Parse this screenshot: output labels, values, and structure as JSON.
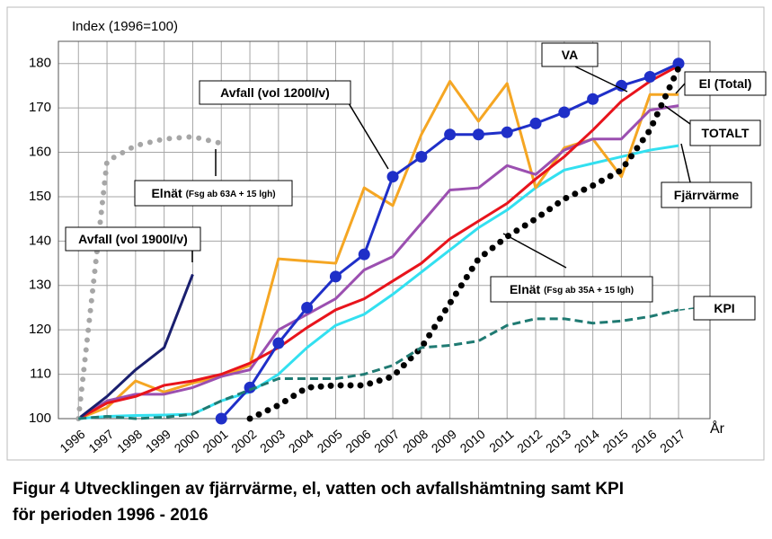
{
  "chart_data": {
    "type": "line",
    "y_label": "Index (1996=100)",
    "x_label": "År",
    "caption": [
      "Figur 4 Utvecklingen av fjärrvärme, el, vatten och avfallshämtning samt KPI",
      "för perioden 1996 - 2016"
    ],
    "x": [
      1996,
      1997,
      1998,
      1999,
      2000,
      2001,
      2002,
      2003,
      2004,
      2005,
      2006,
      2007,
      2008,
      2009,
      2010,
      2011,
      2012,
      2013,
      2014,
      2015,
      2016,
      2017
    ],
    "xlim": [
      1995.3,
      2018.1
    ],
    "xticks": [
      1996,
      1997,
      1998,
      1999,
      2000,
      2001,
      2002,
      2003,
      2004,
      2005,
      2006,
      2007,
      2008,
      2009,
      2010,
      2011,
      2012,
      2013,
      2014,
      2015,
      2016,
      2017
    ],
    "ylim": [
      100,
      185
    ],
    "yticks": [
      100,
      110,
      120,
      130,
      140,
      150,
      160,
      170,
      180
    ],
    "grid": true,
    "series": [
      {
        "name": "Fjärrvärme",
        "color": "#33e0f0",
        "style": "solid",
        "values": [
          100,
          100.5,
          100.7,
          100.8,
          101,
          104,
          106,
          110,
          116,
          121,
          123.5,
          128,
          133,
          138,
          143,
          147,
          152,
          156,
          157.5,
          159,
          160.5,
          161.5
        ]
      },
      {
        "name": "El (Total)",
        "color": "#f5a623",
        "style": "solid",
        "values": [
          100,
          102.5,
          108.5,
          106,
          108,
          109.5,
          112,
          136,
          135.5,
          135,
          152,
          148,
          164,
          176,
          167,
          175.5,
          152,
          161,
          163,
          154.5,
          173,
          173
        ]
      },
      {
        "name": "TOTALT",
        "color": "#9b4fb0",
        "style": "solid",
        "values": [
          100,
          104,
          105.5,
          105.5,
          107,
          109.5,
          111,
          120,
          123.5,
          127,
          133.5,
          136.5,
          144,
          151.5,
          152,
          157,
          155,
          160.5,
          163,
          163,
          169.5,
          170.5
        ]
      },
      {
        "name": "VA",
        "color": "#e8141c",
        "style": "solid",
        "values": [
          100,
          103.5,
          105,
          107.5,
          108.5,
          110,
          112.5,
          116,
          120.5,
          124.5,
          127,
          131,
          135,
          140.5,
          144.5,
          148.5,
          154,
          159,
          165,
          171.5,
          176,
          179.5
        ]
      },
      {
        "name": "Avfall (vol 1200l/v)",
        "color": "#1f2fc8",
        "style": "solid",
        "markers": true,
        "values": [
          null,
          null,
          null,
          null,
          null,
          100,
          107,
          117,
          125,
          132,
          137,
          154.5,
          159,
          164,
          164,
          164.5,
          166.5,
          169,
          172,
          175,
          177,
          180
        ]
      },
      {
        "name": "Avfall (vol 1900l/v)",
        "color": "#1a1f6e",
        "style": "solid",
        "values": [
          100,
          105,
          111,
          116,
          132.5,
          null,
          null,
          null,
          null,
          null,
          null,
          null,
          null,
          null,
          null,
          null,
          null,
          null,
          null,
          null,
          null,
          null
        ]
      },
      {
        "name": "Elnät",
        "name_note": "(Fsg ab 63A + 15 lgh)",
        "color": "#a6a6a6",
        "style": "dotted",
        "values": [
          100,
          158,
          161.5,
          163,
          163.5,
          162,
          null,
          null,
          null,
          null,
          null,
          null,
          null,
          null,
          null,
          null,
          null,
          null,
          null,
          null,
          null,
          null
        ]
      },
      {
        "name": "Elnät",
        "name_note": "(Fsg ab 35A + 15 lgh)",
        "color": "#000000",
        "style": "dotted",
        "values": [
          null,
          null,
          null,
          null,
          null,
          null,
          100,
          103,
          107,
          107.5,
          107.5,
          109.5,
          116,
          126,
          136,
          141,
          145,
          149.5,
          152.5,
          156,
          165,
          179
        ]
      },
      {
        "name": "KPI",
        "color": "#1f7a72",
        "style": "dashed",
        "values": [
          100,
          100.5,
          100,
          100.3,
          101,
          104,
          106.5,
          109,
          109,
          109,
          110,
          112,
          116,
          116.5,
          117.5,
          121,
          122.5,
          122.5,
          121.5,
          122,
          123,
          124.5
        ]
      }
    ]
  }
}
